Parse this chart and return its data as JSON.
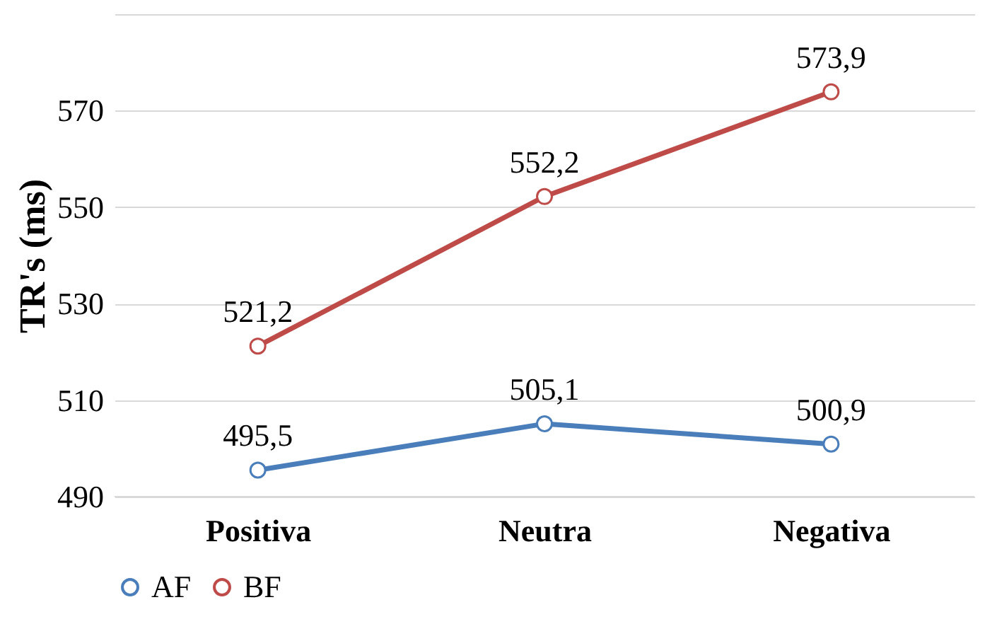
{
  "chart_data": {
    "type": "line",
    "ylabel": "TR's (ms)",
    "categories": [
      "Positiva",
      "Neutra",
      "Negativa"
    ],
    "series": [
      {
        "name": "AF",
        "color": "#4a7ebb",
        "values": [
          495.5,
          505.1,
          500.9
        ],
        "value_labels": [
          "495,5",
          "505,1",
          "500,9"
        ]
      },
      {
        "name": "BF",
        "color": "#be4b48",
        "values": [
          521.2,
          552.2,
          573.9
        ],
        "value_labels": [
          "521,2",
          "552,2",
          "573,9"
        ]
      }
    ],
    "ylim": [
      490,
      590
    ],
    "yticks": [
      490,
      510,
      530,
      550,
      570,
      {
        "value": 590,
        "label": null
      }
    ],
    "grid": "y",
    "legend": "bottom",
    "marker": "circle",
    "line_style": "solid"
  }
}
